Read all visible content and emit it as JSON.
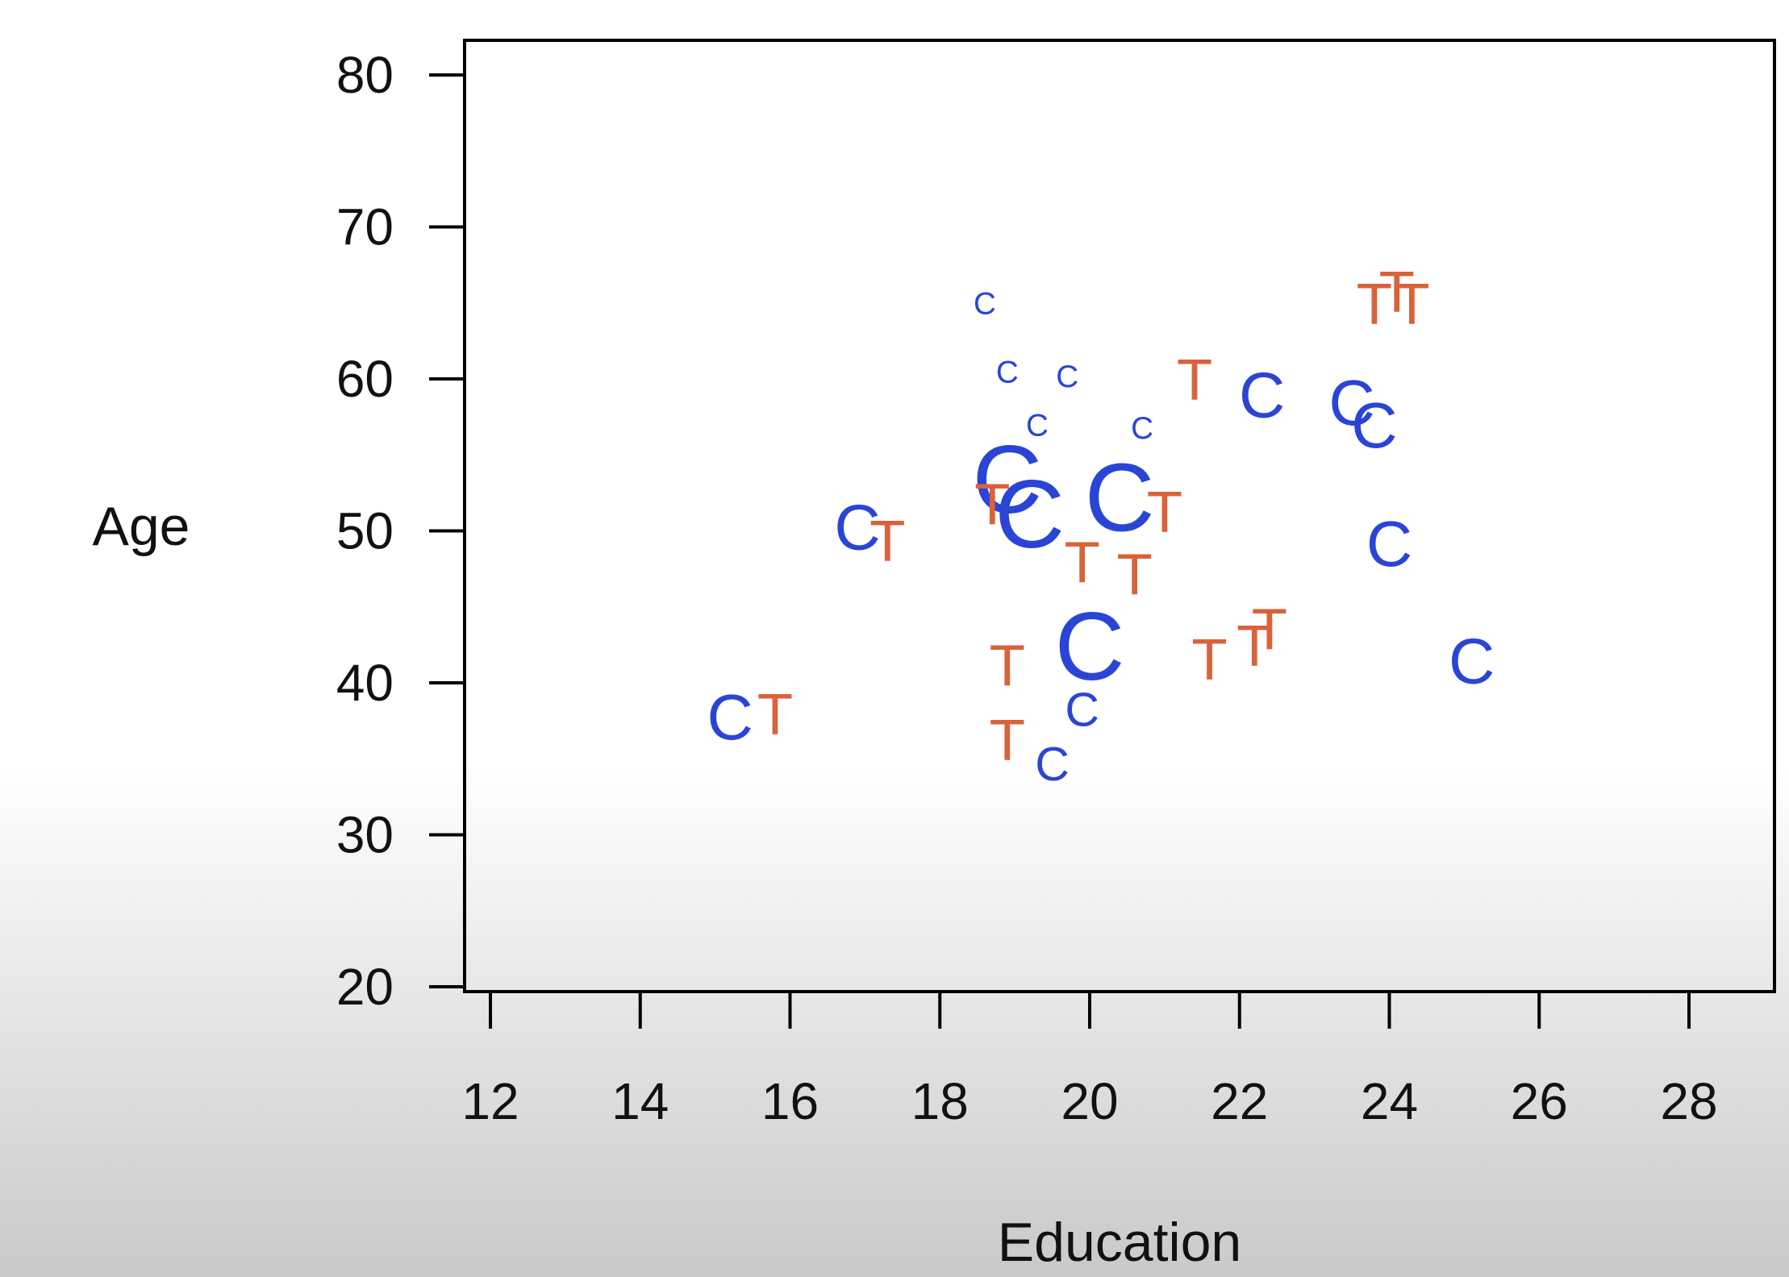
{
  "chart_data": {
    "type": "scatter",
    "title": "",
    "xlabel": "Education",
    "ylabel": "Age",
    "xlim": [
      12,
      28
    ],
    "ylim": [
      20,
      80
    ],
    "xticks": [
      "12",
      "14",
      "16",
      "18",
      "20",
      "22",
      "24",
      "26",
      "28"
    ],
    "yticks": [
      "20",
      "30",
      "40",
      "50",
      "60",
      "70",
      "80"
    ],
    "grid": false,
    "legend": "none",
    "marker_size_encodes": "point weight (relative)",
    "series": [
      {
        "label": "C",
        "color": "#2a45d6",
        "points": [
          {
            "x": 18.6,
            "y": 65.0,
            "size": 0.2
          },
          {
            "x": 18.9,
            "y": 60.5,
            "size": 0.2
          },
          {
            "x": 19.7,
            "y": 60.2,
            "size": 0.2
          },
          {
            "x": 19.3,
            "y": 57.0,
            "size": 0.2
          },
          {
            "x": 20.7,
            "y": 56.8,
            "size": 0.2
          },
          {
            "x": 22.3,
            "y": 59.0,
            "size": 0.8
          },
          {
            "x": 23.5,
            "y": 58.5,
            "size": 0.8
          },
          {
            "x": 23.8,
            "y": 57.0,
            "size": 0.8
          },
          {
            "x": 18.9,
            "y": 53.5,
            "size": 1.4
          },
          {
            "x": 19.2,
            "y": 51.2,
            "size": 1.4
          },
          {
            "x": 20.4,
            "y": 52.3,
            "size": 1.4
          },
          {
            "x": 16.9,
            "y": 50.3,
            "size": 0.8
          },
          {
            "x": 24.0,
            "y": 49.2,
            "size": 0.8
          },
          {
            "x": 20.0,
            "y": 42.5,
            "size": 1.4
          },
          {
            "x": 25.1,
            "y": 41.5,
            "size": 0.8
          },
          {
            "x": 15.2,
            "y": 37.8,
            "size": 0.8
          },
          {
            "x": 19.9,
            "y": 38.3,
            "size": 0.5
          },
          {
            "x": 19.5,
            "y": 34.7,
            "size": 0.5
          }
        ]
      },
      {
        "label": "T",
        "color": "#d9623a",
        "points": [
          {
            "x": 23.8,
            "y": 65.0,
            "size": 0.7
          },
          {
            "x": 24.1,
            "y": 65.8,
            "size": 0.7
          },
          {
            "x": 24.3,
            "y": 65.0,
            "size": 0.7
          },
          {
            "x": 21.4,
            "y": 60.0,
            "size": 0.7
          },
          {
            "x": 18.7,
            "y": 51.8,
            "size": 0.7
          },
          {
            "x": 21.0,
            "y": 51.3,
            "size": 0.7
          },
          {
            "x": 17.3,
            "y": 49.4,
            "size": 0.7
          },
          {
            "x": 19.9,
            "y": 48.0,
            "size": 0.7
          },
          {
            "x": 20.6,
            "y": 47.2,
            "size": 0.7
          },
          {
            "x": 22.4,
            "y": 43.6,
            "size": 0.7
          },
          {
            "x": 22.2,
            "y": 42.5,
            "size": 0.7
          },
          {
            "x": 21.6,
            "y": 41.6,
            "size": 0.7
          },
          {
            "x": 18.9,
            "y": 41.2,
            "size": 0.7
          },
          {
            "x": 15.8,
            "y": 38.0,
            "size": 0.7
          },
          {
            "x": 18.9,
            "y": 36.3,
            "size": 0.7
          }
        ]
      }
    ]
  }
}
